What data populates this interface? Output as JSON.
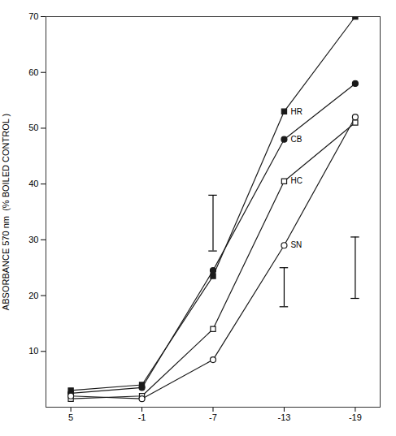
{
  "chart_data": {
    "type": "line",
    "categories": [
      "5",
      "-1",
      "-7",
      "-13",
      "-19"
    ],
    "series": [
      {
        "name": "HR",
        "color": "#1a1a1a",
        "marker": "square",
        "values": [
          3.0,
          4.0,
          23.5,
          53.0,
          70.0
        ]
      },
      {
        "name": "CB",
        "color": "#1a1a1a",
        "marker": "circle",
        "values": [
          2.5,
          3.5,
          24.5,
          48.0,
          58.0
        ]
      },
      {
        "name": "HC",
        "color": "#1a1a1a",
        "marker": "open_square",
        "values": [
          1.5,
          2.0,
          14.0,
          40.5,
          51.0
        ]
      },
      {
        "name": "SN",
        "color": "#1a1a1a",
        "marker": "open_circle",
        "values": [
          2.0,
          1.5,
          8.5,
          29.0,
          52.0
        ]
      }
    ],
    "ylabel": "ABSORBANCE 570 nm  (% BOILED CONTROL )",
    "ylim": [
      0,
      70
    ],
    "yticks": [
      10,
      20,
      30,
      40,
      50,
      60,
      70
    ],
    "annotations": [
      {
        "text": "HR",
        "x": "-13",
        "y": 53.0
      },
      {
        "text": "CB",
        "x": "-13",
        "y": 48.0
      },
      {
        "text": "HC",
        "x": "-13",
        "y": 40.5
      },
      {
        "text": "SN",
        "x": "-13",
        "y": 29.0
      }
    ],
    "error_bars": [
      {
        "x": "-7",
        "y": 33.0,
        "half_height": 5.0
      },
      {
        "x": "-13",
        "y": 21.5,
        "half_height": 3.5
      },
      {
        "x": "-19",
        "y": 25.0,
        "half_height": 5.5
      }
    ]
  }
}
